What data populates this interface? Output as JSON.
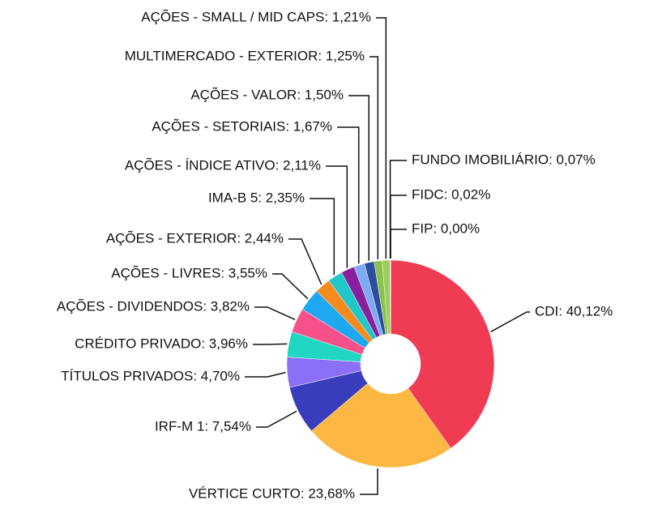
{
  "chart_data": {
    "type": "donut",
    "values": [
      40.12,
      23.68,
      7.54,
      4.7,
      3.96,
      3.82,
      3.55,
      2.44,
      2.35,
      2.11,
      1.67,
      1.5,
      1.25,
      1.21,
      0.07,
      0.02,
      0.0
    ],
    "value_labels": [
      "CDI: 40,12%",
      "VÉRTICE CURTO: 23,68%",
      "IRF-M 1: 7,54%",
      "TÍTULOS PRIVADOS: 4,70%",
      "CRÉDITO PRIVADO: 3,96%",
      "AÇÕES - DIVIDENDOS: 3,82%",
      "AÇÕES - LIVRES: 3,55%",
      "AÇÕES - EXTERIOR: 2,44%",
      "IMA-B 5: 2,35%",
      "AÇÕES - ÍNDICE ATIVO: 2,11%",
      "AÇÕES - SETORIAIS: 1,67%",
      "AÇÕES - VALOR: 1,50%",
      "MULTIMERCADO - EXTERIOR: 1,25%",
      "AÇÕES - SMALL / MID CAPS: 1,21%",
      "FUNDO IMOBILIÁRIO: 0,07%",
      "FIDC: 0,02%",
      "FIP: 0,00%"
    ],
    "colors": [
      "#f03c52",
      "#fdb743",
      "#3a3dbb",
      "#8b6ff7",
      "#22d6c4",
      "#f8508a",
      "#1ea8f0",
      "#f58b1f",
      "#22c5c8",
      "#8a1f9e",
      "#7eaaf4",
      "#2b4f9e",
      "#8bc34a",
      "#9acd5a",
      "#e8a060",
      "#c0ca33",
      "#a0a0a0"
    ]
  }
}
